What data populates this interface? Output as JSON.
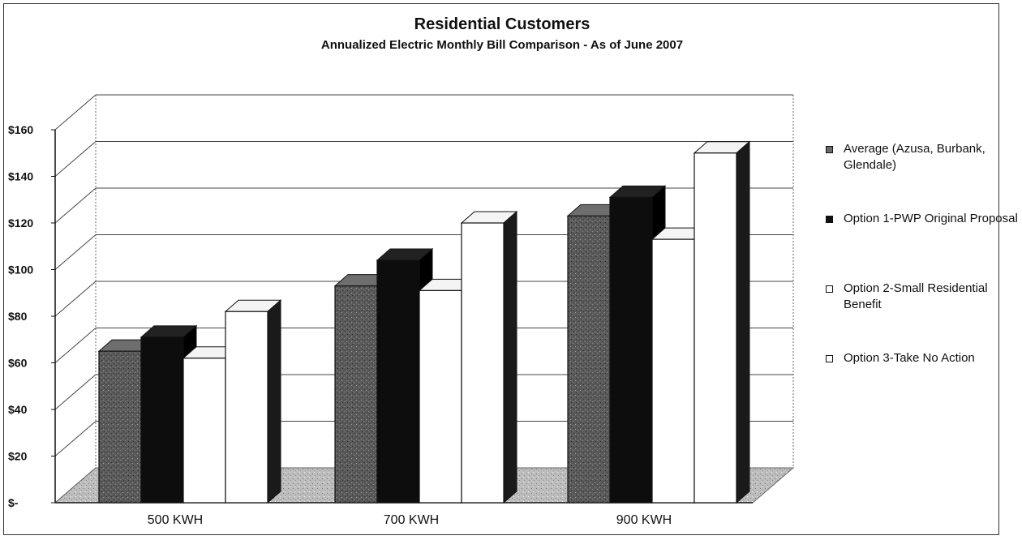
{
  "chart_data": {
    "type": "bar",
    "title": "Residential Customers",
    "subtitle": "Annualized Electric Monthly Bill Comparison - As of June 2007",
    "categories": [
      "500 KWH",
      "700 KWH",
      "900 KWH"
    ],
    "series": [
      {
        "name": "Average (Azusa, Burbank, Glendale)",
        "values": [
          65,
          93,
          123
        ],
        "color": "#555555"
      },
      {
        "name": "Option 1-PWP Original Proposal",
        "values": [
          71,
          104,
          131
        ],
        "color": "#111111"
      },
      {
        "name": "Option 2-Small Residential Benefit",
        "values": [
          62,
          91,
          113
        ],
        "color": "#ffffff"
      },
      {
        "name": "Option 3-Take No Action",
        "values": [
          82,
          120,
          150
        ],
        "color": "#ffffff"
      }
    ],
    "y_tick_labels": [
      "$-",
      "$20",
      "$40",
      "$60",
      "$80",
      "$100",
      "$120",
      "$140",
      "$160"
    ],
    "ylim": [
      0,
      160
    ],
    "grid": true,
    "legend_position": "right",
    "style": "3d-column"
  }
}
